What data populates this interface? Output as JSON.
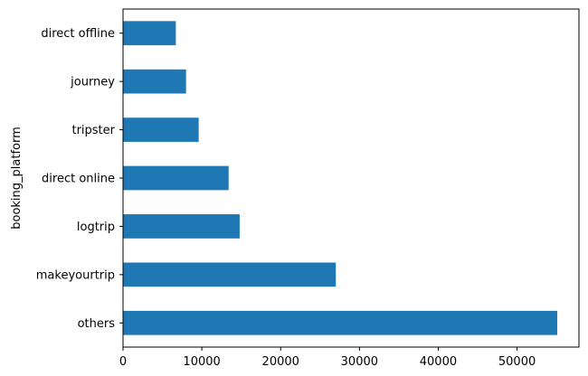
{
  "chart_data": {
    "type": "bar",
    "orientation": "horizontal",
    "categories": [
      "direct offline",
      "journey",
      "tripster",
      "direct online",
      "logtrip",
      "makeyourtrip",
      "others"
    ],
    "values": [
      6700,
      8000,
      9600,
      13400,
      14800,
      27000,
      55100
    ],
    "xlabel": "",
    "ylabel": "booking_platform",
    "xlim": [
      0,
      57855
    ],
    "xticks": [
      0,
      10000,
      20000,
      30000,
      40000,
      50000
    ],
    "xtick_labels": [
      "0",
      "10000",
      "20000",
      "30000",
      "40000",
      "50000"
    ],
    "grid": false,
    "bar_color": "#1f77b4"
  }
}
